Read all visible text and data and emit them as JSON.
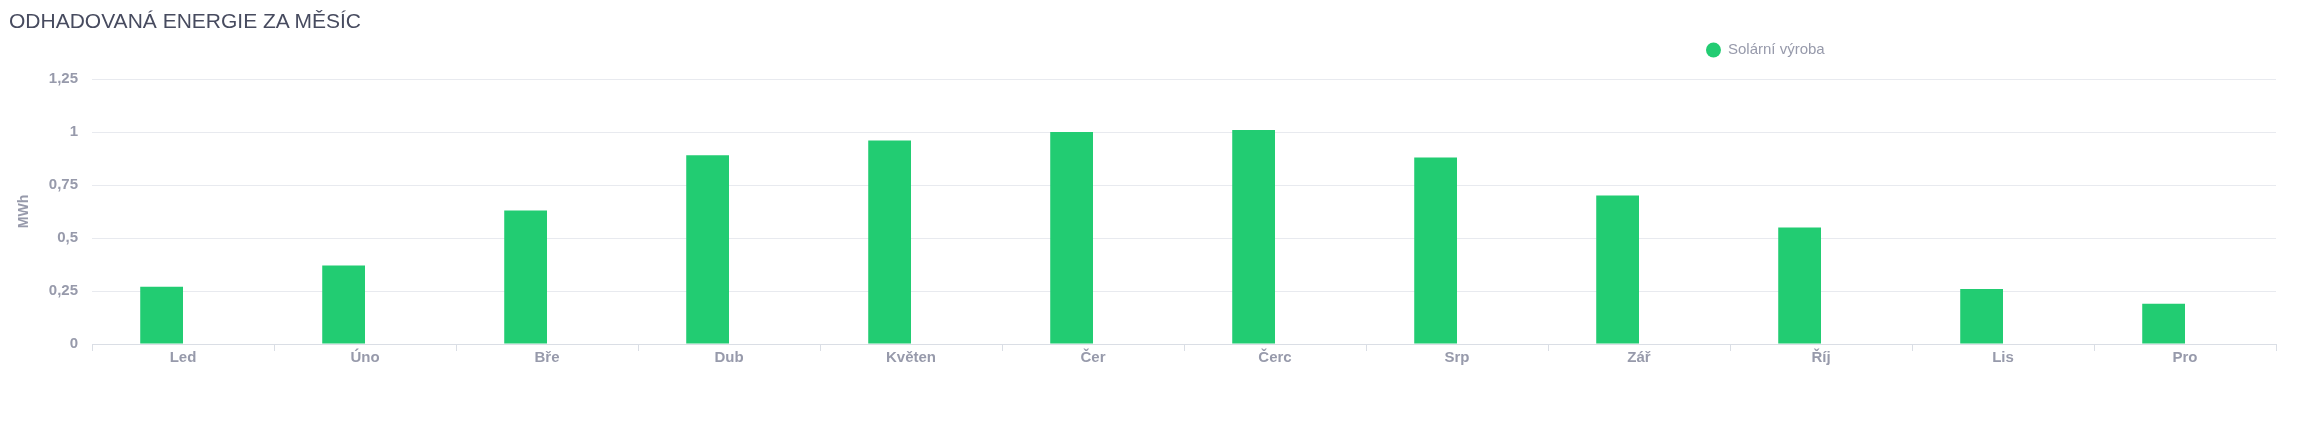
{
  "chart_data": {
    "type": "bar",
    "title": "ODHADOVANÁ ENERGIE ZA MĚSÍC",
    "ylabel": "MWh",
    "categories": [
      "Led",
      "Úno",
      "Bře",
      "Dub",
      "Květen",
      "Čer",
      "Čerc",
      "Srp",
      "Zář",
      "Říj",
      "Lis",
      "Pro"
    ],
    "series": [
      {
        "name": "Solární výroba",
        "color": "#22cc72",
        "values": [
          0.27,
          0.37,
          0.63,
          0.89,
          0.96,
          1.0,
          1.01,
          0.88,
          0.7,
          0.55,
          0.26,
          0.19
        ]
      }
    ],
    "ylim": [
      0,
      1.25
    ],
    "yticks": [
      0,
      {
        "value": 0.25,
        "label": "0,25"
      },
      {
        "value": 0.5,
        "label": "0,5"
      },
      {
        "value": 0.75,
        "label": "0,75"
      },
      1,
      {
        "value": 1.25,
        "label": "1,25"
      }
    ],
    "grid": "y",
    "legend": "top right"
  }
}
